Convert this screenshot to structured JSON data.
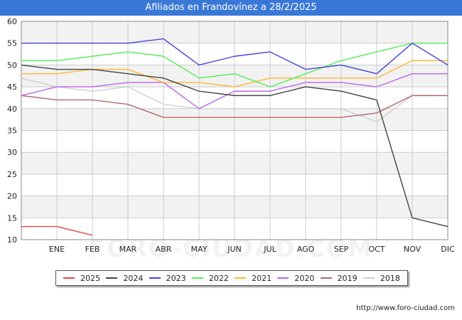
{
  "header": {
    "title": "Afiliados en Frandovínez a 28/2/2025"
  },
  "footer": {
    "url": "http://www.foro-ciudad.com"
  },
  "watermark": {
    "text": "FORO-CIUDAD.COM"
  },
  "colors": {
    "title_bar": "#3a78d8",
    "band": "#f2f2f2",
    "grid": "#cccccc"
  },
  "chart_data": {
    "type": "line",
    "title": "Afiliados en Frandovínez a 28/2/2025",
    "xlabel": "",
    "ylabel": "",
    "categories": [
      "",
      "ENE",
      "FEB",
      "MAR",
      "ABR",
      "MAY",
      "JUN",
      "JUL",
      "AGO",
      "SEP",
      "OCT",
      "NOV",
      "DIC"
    ],
    "ylim": [
      10,
      60
    ],
    "yticks": [
      10,
      15,
      20,
      25,
      30,
      35,
      40,
      45,
      50,
      55,
      60
    ],
    "grid": true,
    "legend_position": "bottom",
    "series": [
      {
        "name": "2025",
        "color": "#e04b4b",
        "values": [
          13,
          13,
          11,
          null,
          null,
          null,
          null,
          null,
          null,
          null,
          null,
          null,
          null
        ]
      },
      {
        "name": "2024",
        "color": "#444444",
        "values": [
          50,
          49,
          49,
          48,
          47,
          44,
          43,
          43,
          45,
          44,
          42,
          15,
          13
        ]
      },
      {
        "name": "2023",
        "color": "#4444dd",
        "values": [
          55,
          55,
          55,
          55,
          56,
          50,
          52,
          53,
          49,
          50,
          48,
          55,
          50
        ]
      },
      {
        "name": "2022",
        "color": "#55ee55",
        "values": [
          51,
          51,
          52,
          53,
          52,
          47,
          48,
          45,
          48,
          51,
          53,
          55,
          55
        ]
      },
      {
        "name": "2021",
        "color": "#ffb733",
        "values": [
          48,
          48,
          49,
          49,
          46,
          46,
          45,
          47,
          47,
          47,
          47,
          51,
          51
        ]
      },
      {
        "name": "2020",
        "color": "#bb66ee",
        "values": [
          43,
          45,
          45,
          46,
          46,
          40,
          44,
          44,
          46,
          46,
          45,
          48,
          48
        ]
      },
      {
        "name": "2019",
        "color": "#b06a6a",
        "values": [
          43,
          42,
          42,
          41,
          38,
          38,
          38,
          38,
          38,
          38,
          39,
          43,
          43
        ]
      },
      {
        "name": "2018",
        "color": "#d0d0d0",
        "values": [
          47,
          45,
          44,
          45,
          41,
          40,
          40,
          40,
          40,
          40,
          37,
          43,
          43
        ]
      }
    ]
  }
}
